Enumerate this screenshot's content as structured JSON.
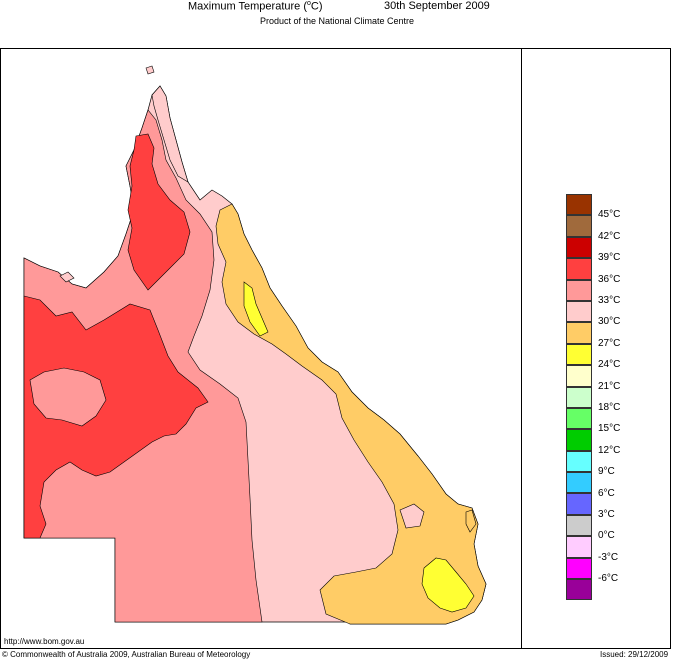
{
  "header": {
    "title_prefix": "Maximum Temperature (",
    "title_degree": "o",
    "title_suffix": "C)",
    "date": "30th September 2009",
    "subtitle": "Product of the National Climate Centre"
  },
  "legend": {
    "unit": "°C",
    "bands": [
      {
        "color": "#993300"
      },
      {
        "color": "#a06a3c"
      },
      {
        "color": "#cc0000"
      },
      {
        "color": "#ff4040"
      },
      {
        "color": "#ff9999"
      },
      {
        "color": "#ffcccc"
      },
      {
        "color": "#ffcc66"
      },
      {
        "color": "#ffff33"
      },
      {
        "color": "#ffffcc"
      },
      {
        "color": "#ccffcc"
      },
      {
        "color": "#66ff66"
      },
      {
        "color": "#00cc00"
      },
      {
        "color": "#66ffff"
      },
      {
        "color": "#33ccff"
      },
      {
        "color": "#6666ff"
      },
      {
        "color": "#cccccc"
      },
      {
        "color": "#ffccff"
      },
      {
        "color": "#ff00ff"
      },
      {
        "color": "#990099"
      }
    ],
    "labels": [
      "45°C",
      "42°C",
      "39°C",
      "36°C",
      "33°C",
      "30°C",
      "27°C",
      "24°C",
      "21°C",
      "18°C",
      "15°C",
      "12°C",
      "9°C",
      "6°C",
      "3°C",
      "0°C",
      "-3°C",
      "-6°C"
    ]
  },
  "footer": {
    "url": "http://www.bom.gov.au",
    "copyright": "© Commonwealth of Australia 2009, Australian Bureau of Meteorology",
    "issued": "Issued: 29/12/2009"
  },
  "map_colors": {
    "band_39_42": "#ff4040",
    "band_36_39": "#ff9999",
    "band_33_36": "#ffcccc",
    "band_30_33": "#ffcc66",
    "band_27_30": "#ffff33"
  }
}
